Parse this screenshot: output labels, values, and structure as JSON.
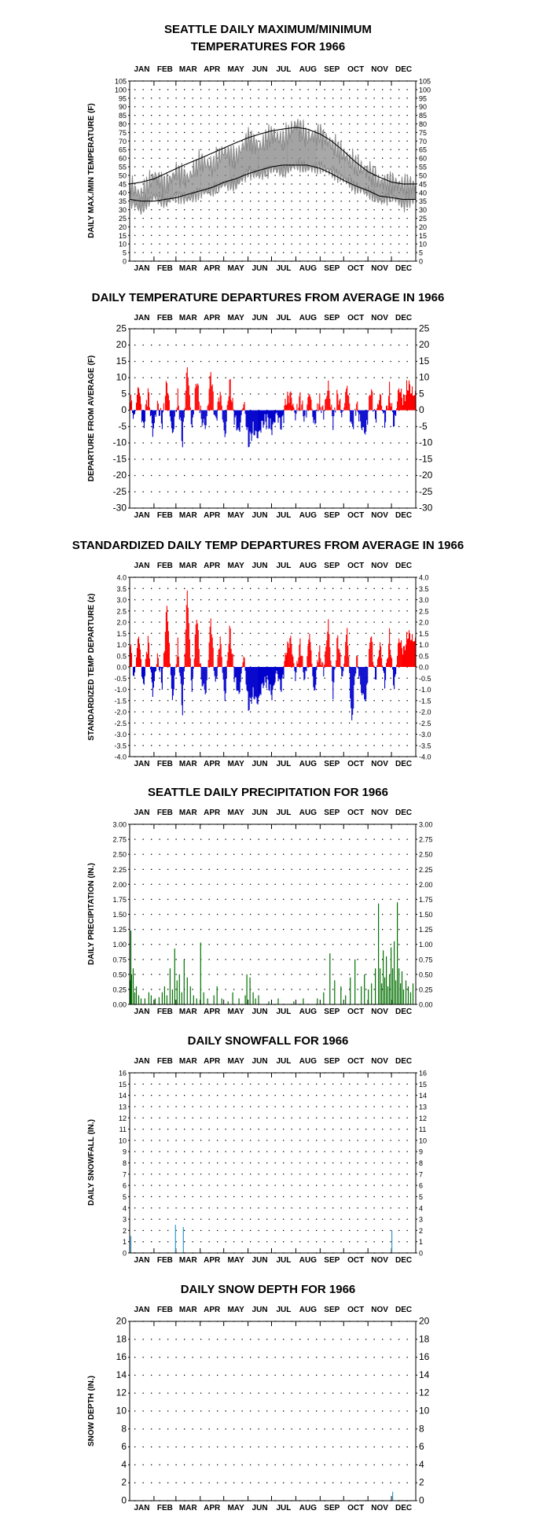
{
  "colors": {
    "temp_series": "#8c8c8c",
    "normal_lines": "#000000",
    "positive": "#ff0000",
    "negative": "#0000cc",
    "precip": "#007000",
    "snow": "#3399cc"
  },
  "months": [
    "JAN",
    "FEB",
    "MAR",
    "APR",
    "MAY",
    "JUN",
    "JUL",
    "AUG",
    "SEP",
    "OCT",
    "NOV",
    "DEC"
  ],
  "chart_data": [
    {
      "id": "temps",
      "type": "line",
      "title": "SEATTLE DAILY MAXIMUM/MINIMUM",
      "subtitle": "TEMPERATURES FOR 1966",
      "ylabel": "DAILY MAX./MIN TEMPERATURE (F)",
      "ylim": [
        0,
        105
      ],
      "yticks": [
        0,
        5,
        10,
        15,
        20,
        25,
        30,
        35,
        40,
        45,
        50,
        55,
        60,
        65,
        70,
        75,
        80,
        85,
        90,
        95,
        100,
        105
      ],
      "grid": true,
      "series": [],
      "control_points": {
        "day": [
          1,
          15,
          32,
          46,
          60,
          75,
          91,
          106,
          121,
          136,
          152,
          166,
          182,
          196,
          213,
          227,
          244,
          258,
          274,
          288,
          305,
          319,
          335,
          349,
          365
        ],
        "max": [
          44,
          38,
          50,
          44,
          52,
          48,
          58,
          55,
          64,
          60,
          72,
          66,
          74,
          70,
          80,
          72,
          74,
          68,
          62,
          56,
          52,
          46,
          46,
          44,
          44
        ],
        "min": [
          35,
          30,
          38,
          34,
          38,
          36,
          40,
          41,
          45,
          44,
          52,
          50,
          54,
          52,
          56,
          54,
          55,
          52,
          48,
          43,
          40,
          35,
          38,
          33,
          36
        ],
        "normal_max": [
          45,
          46,
          48,
          51,
          54,
          57,
          60,
          63,
          66,
          69,
          72,
          74,
          76,
          77,
          78,
          77,
          74,
          70,
          64,
          58,
          52,
          49,
          46,
          45,
          45
        ],
        "normal_min": [
          36,
          35,
          35,
          36,
          37,
          39,
          41,
          43,
          46,
          48,
          51,
          53,
          55,
          56,
          56,
          56,
          54,
          51,
          47,
          44,
          41,
          38,
          37,
          36,
          36
        ]
      }
    },
    {
      "id": "departures",
      "type": "bar",
      "title": "DAILY TEMPERATURE DEPARTURES FROM AVERAGE IN 1966",
      "ylabel": "DEPARTURE FROM AVERAGE (F)",
      "ylim": [
        -30,
        25
      ],
      "yticks": [
        -30,
        -25,
        -20,
        -15,
        -10,
        -5,
        0,
        5,
        10,
        15,
        20,
        25
      ],
      "grid": true,
      "control_points": {
        "day": [
          1,
          6,
          12,
          18,
          24,
          30,
          36,
          42,
          48,
          55,
          62,
          68,
          74,
          80,
          86,
          92,
          98,
          104,
          110,
          116,
          122,
          128,
          134,
          140,
          146,
          152,
          158,
          164,
          170,
          176,
          182,
          188,
          194,
          200,
          206,
          212,
          218,
          224,
          230,
          236,
          242,
          248,
          254,
          260,
          266,
          272,
          278,
          284,
          290,
          296,
          302,
          308,
          314,
          320,
          326,
          332,
          338,
          344,
          350,
          356,
          362
        ],
        "value": [
          5,
          -3,
          8,
          -6,
          6,
          -7,
          2,
          -4,
          9,
          -8,
          4,
          -10,
          14,
          -6,
          10,
          -3,
          -5,
          12,
          -4,
          6,
          -9,
          9,
          -2,
          -7,
          3,
          -10,
          -6,
          -8,
          -4,
          -3,
          -6,
          -1,
          -5,
          3,
          5,
          -2,
          4,
          -3,
          6,
          -5,
          3,
          -1,
          8,
          -4,
          5,
          -2,
          8,
          -6,
          2,
          -5,
          -7,
          7,
          -3,
          5,
          -4,
          6,
          -5,
          7,
          3,
          8,
          5
        ]
      }
    },
    {
      "id": "standardized",
      "type": "bar",
      "title": "STANDARDIZED DAILY TEMP DEPARTURES FROM AVERAGE IN 1966",
      "ylabel": "STANDARDIZED TEMP DEPARTURE (z)",
      "ylim": [
        -4.0,
        4.0
      ],
      "yticks": [
        -4.0,
        -3.5,
        -3.0,
        -2.5,
        -2.0,
        -1.5,
        -1.0,
        -0.5,
        0.0,
        0.5,
        1.0,
        1.5,
        2.0,
        2.5,
        3.0,
        3.5,
        4.0
      ],
      "grid": true,
      "control_points": {
        "day": [
          1,
          6,
          12,
          18,
          24,
          30,
          36,
          42,
          48,
          55,
          62,
          68,
          74,
          80,
          86,
          92,
          98,
          104,
          110,
          116,
          122,
          128,
          134,
          140,
          146,
          152,
          158,
          164,
          170,
          176,
          182,
          188,
          194,
          200,
          206,
          212,
          218,
          224,
          230,
          236,
          242,
          248,
          254,
          260,
          266,
          272,
          278,
          284,
          290,
          296,
          302,
          308,
          314,
          320,
          326,
          332,
          338,
          344,
          350,
          356,
          362
        ],
        "value": [
          1.2,
          -0.6,
          1.5,
          -1.0,
          1.3,
          -1.2,
          0.5,
          -0.8,
          2.8,
          -1.6,
          1.0,
          -2.0,
          3.5,
          -1.2,
          2.4,
          -0.6,
          -1.2,
          2.2,
          -0.9,
          1.4,
          -1.6,
          1.8,
          -0.4,
          -1.3,
          0.6,
          -1.8,
          -1.2,
          -1.6,
          -0.8,
          -0.6,
          -1.3,
          -0.2,
          -1.0,
          0.7,
          1.3,
          -0.5,
          1.1,
          -0.7,
          1.6,
          -1.3,
          0.8,
          -0.2,
          2.0,
          -1.2,
          1.4,
          -0.6,
          1.8,
          -2.6,
          0.5,
          -1.1,
          -1.5,
          1.6,
          -0.6,
          1.1,
          -0.8,
          1.4,
          -1.0,
          1.3,
          0.7,
          1.5,
          1.2
        ]
      }
    },
    {
      "id": "precip",
      "type": "bar",
      "title": "SEATTLE DAILY PRECIPITATION FOR 1966",
      "ylabel": "DAILY PRECIPITATION (IN.)",
      "ylim": [
        0,
        3.0
      ],
      "yticks": [
        0.0,
        0.25,
        0.5,
        0.75,
        1.0,
        1.25,
        1.5,
        1.75,
        2.0,
        2.25,
        2.5,
        2.75,
        3.0
      ],
      "grid": true,
      "events": {
        "day": [
          1,
          2,
          3,
          5,
          7,
          9,
          12,
          15,
          20,
          25,
          28,
          33,
          38,
          42,
          45,
          48,
          52,
          55,
          58,
          61,
          64,
          67,
          70,
          74,
          78,
          82,
          86,
          91,
          95,
          100,
          108,
          112,
          118,
          126,
          132,
          140,
          148,
          150,
          154,
          158,
          161,
          165,
          178,
          190,
          210,
          222,
          240,
          248,
          256,
          262,
          270,
          276,
          282,
          288,
          296,
          300,
          305,
          309,
          314,
          318,
          320,
          322,
          324,
          326,
          328,
          330,
          332,
          334,
          336,
          338,
          340,
          342,
          344,
          346,
          348,
          350,
          353,
          356,
          359,
          362
        ],
        "value": [
          0.4,
          1.23,
          0.5,
          0.6,
          0.2,
          0.3,
          0.15,
          0.1,
          0.1,
          0.2,
          0.15,
          0.1,
          0.12,
          0.2,
          0.3,
          0.15,
          0.6,
          0.25,
          0.93,
          0.4,
          0.5,
          0.2,
          0.75,
          0.45,
          0.3,
          0.15,
          0.1,
          1.03,
          0.2,
          0.1,
          0.15,
          0.3,
          0.1,
          0.05,
          0.2,
          0.1,
          0.15,
          0.5,
          0.45,
          0.2,
          0.1,
          0.15,
          0.05,
          0.1,
          0.05,
          0.1,
          0.1,
          0.2,
          0.85,
          0.4,
          0.3,
          0.15,
          0.45,
          0.75,
          0.3,
          0.5,
          0.25,
          0.35,
          0.6,
          1.68,
          0.6,
          0.35,
          0.9,
          0.45,
          0.8,
          0.3,
          0.5,
          0.95,
          0.6,
          1.05,
          0.4,
          1.7,
          0.6,
          0.35,
          0.55,
          0.25,
          0.4,
          0.3,
          0.2,
          0.35
        ]
      }
    },
    {
      "id": "snowfall",
      "type": "bar",
      "title": "DAILY SNOWFALL FOR 1966",
      "ylabel": "DAILY SNOWFALL (IN.)",
      "ylim": [
        0,
        16
      ],
      "yticks": [
        0,
        1,
        2,
        3,
        4,
        5,
        6,
        7,
        8,
        9,
        10,
        11,
        12,
        13,
        14,
        15,
        16
      ],
      "grid": true,
      "events": {
        "day": [
          2,
          59,
          69,
          335
        ],
        "value": [
          1.5,
          2.5,
          2.3,
          2.0
        ]
      }
    },
    {
      "id": "snowdepth",
      "type": "bar",
      "title": "DAILY SNOW DEPTH FOR 1966",
      "ylabel": "SNOW DEPTH (IN.)",
      "ylim": [
        0,
        20
      ],
      "yticks": [
        0,
        2,
        4,
        6,
        8,
        10,
        12,
        14,
        16,
        18,
        20
      ],
      "grid": true,
      "events": {
        "day": [
          336
        ],
        "value": [
          1
        ]
      }
    }
  ]
}
